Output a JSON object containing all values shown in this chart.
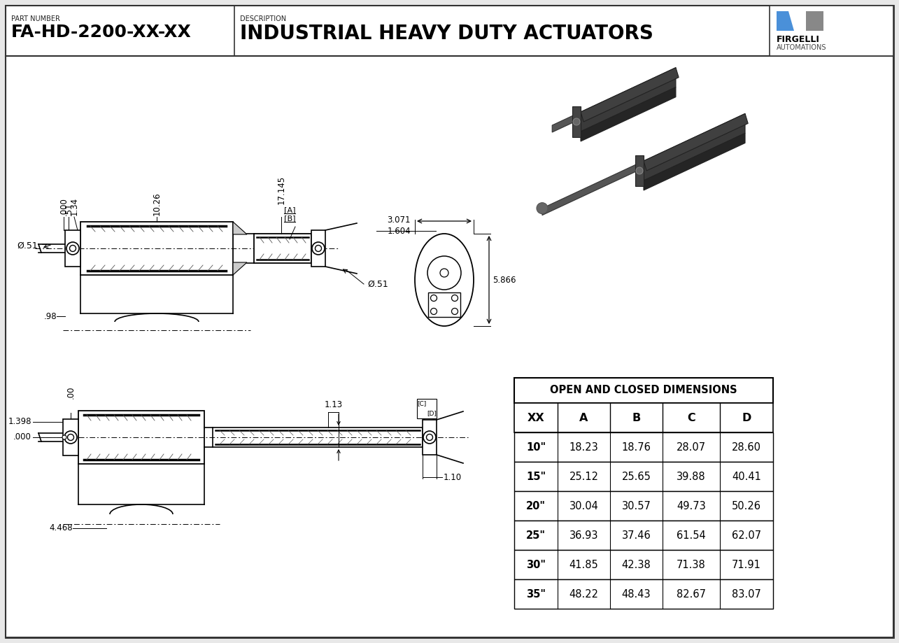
{
  "part_number": "FA-HD-2200-XX-XX",
  "description": "INDUSTRIAL HEAVY DUTY ACTUATORS",
  "part_number_label": "PART NUMBER",
  "description_label": "DESCRIPTION",
  "bg_color": "#e8e8e8",
  "drawing_bg": "#ffffff",
  "table_title": "OPEN AND CLOSED DIMENSIONS",
  "table_headers": [
    "XX",
    "A",
    "B",
    "C",
    "D"
  ],
  "table_data": [
    [
      "10\"",
      "18.23",
      "18.76",
      "28.07",
      "28.60"
    ],
    [
      "15\"",
      "25.12",
      "25.65",
      "39.88",
      "40.41"
    ],
    [
      "20\"",
      "30.04",
      "30.57",
      "49.73",
      "50.26"
    ],
    [
      "25\"",
      "36.93",
      "37.46",
      "61.54",
      "62.07"
    ],
    [
      "30\"",
      "41.85",
      "42.38",
      "71.38",
      "71.91"
    ],
    [
      "35\"",
      "48.22",
      "48.43",
      "82.67",
      "83.07"
    ]
  ],
  "dims_top": {
    "d000": ".000",
    "d51": ".51",
    "d134": "1.34",
    "d1026": "10.26",
    "d17145": "17.145",
    "dA": "[A]",
    "dB": "[B]",
    "phi51_left": "Ø.51",
    "d98": ".98",
    "phi51_right": "Ø.51"
  },
  "dims_front": {
    "d3071": "3.071",
    "d1604": "1.604",
    "d5866": "5.866"
  },
  "dims_bottom": {
    "d00": ".00",
    "d1398": "1.398",
    "d000": ".000",
    "d113": "1.13",
    "d110": "1.10",
    "d4468": "4.468",
    "dC": "[C]",
    "dD": "[D]"
  },
  "logo_blue": "#4a90d9",
  "logo_gray": "#888888",
  "logo_text1": "FIRGELLI",
  "logo_text2": "AUTOMATIONS"
}
